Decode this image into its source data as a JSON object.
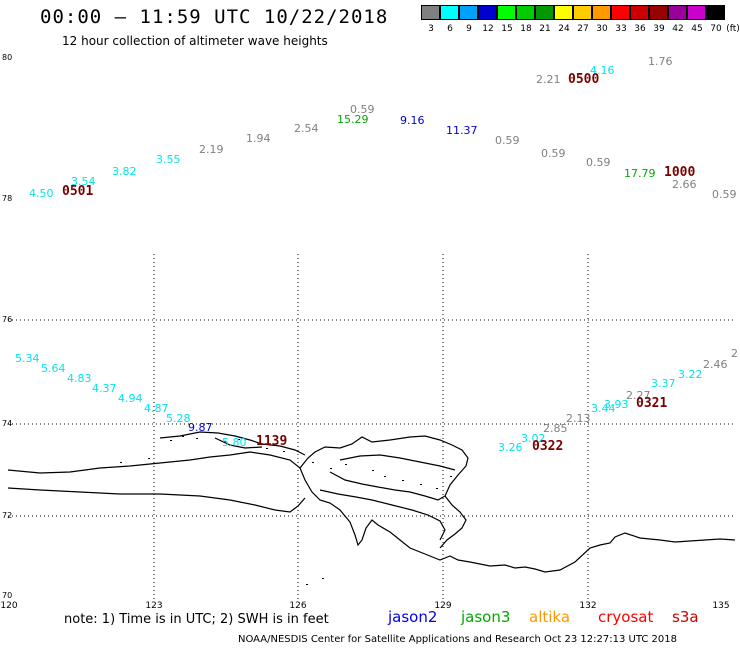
{
  "title": "00:00 – 11:59 UTC 10/22/2018",
  "subtitle": "12 hour collection of altimeter wave heights",
  "colorbar": {
    "unit": "(ft)",
    "steps": [
      {
        "label": "3",
        "color": "#808080"
      },
      {
        "label": "6",
        "color": "#00ffff"
      },
      {
        "label": "9",
        "color": "#00a0ff"
      },
      {
        "label": "12",
        "color": "#0000cc"
      },
      {
        "label": "15",
        "color": "#00ff00"
      },
      {
        "label": "18",
        "color": "#00cc00"
      },
      {
        "label": "21",
        "color": "#009900"
      },
      {
        "label": "24",
        "color": "#ffff00"
      },
      {
        "label": "27",
        "color": "#ffcc00"
      },
      {
        "label": "30",
        "color": "#ff9900"
      },
      {
        "label": "33",
        "color": "#ff0000"
      },
      {
        "label": "36",
        "color": "#cc0000"
      },
      {
        "label": "39",
        "color": "#990000"
      },
      {
        "label": "42",
        "color": "#990099"
      },
      {
        "label": "45",
        "color": "#cc00cc"
      },
      {
        "label": "70",
        "color": "#000000"
      }
    ]
  },
  "axes": {
    "lat_labels": [
      "80",
      "78",
      "76",
      "74",
      "72",
      "70"
    ],
    "lon_labels": [
      "120",
      "123",
      "126",
      "129",
      "132",
      "135"
    ]
  },
  "observations": [
    {
      "v": "4.50",
      "c": "#00e5ee"
    },
    {
      "v": "3.54",
      "c": "#00e5ee"
    },
    {
      "v": "3.82",
      "c": "#00e5ee"
    },
    {
      "v": "3.55",
      "c": "#00e5ee"
    },
    {
      "v": "2.19",
      "c": "#808080"
    },
    {
      "v": "1.94",
      "c": "#808080"
    },
    {
      "v": "2.54",
      "c": "#808080"
    },
    {
      "v": "0.59",
      "c": "#808080"
    },
    {
      "v": "15.29",
      "c": "#00aa00"
    },
    {
      "v": "9.16",
      "c": "#0000cc"
    },
    {
      "v": "11.37",
      "c": "#0000cc"
    },
    {
      "v": "0.59",
      "c": "#808080"
    },
    {
      "v": "0.59",
      "c": "#808080"
    },
    {
      "v": "2.21",
      "c": "#808080"
    },
    {
      "v": "4.16",
      "c": "#00e5ee"
    },
    {
      "v": "1.76",
      "c": "#808080"
    },
    {
      "v": "0.59",
      "c": "#808080"
    },
    {
      "v": "17.79",
      "c": "#00aa00"
    },
    {
      "v": "2.66",
      "c": "#808080"
    },
    {
      "v": "0.59",
      "c": "#808080"
    },
    {
      "v": "5.34",
      "c": "#00e5ee"
    },
    {
      "v": "5.64",
      "c": "#00e5ee"
    },
    {
      "v": "4.83",
      "c": "#00e5ee"
    },
    {
      "v": "4.37",
      "c": "#00e5ee"
    },
    {
      "v": "4.94",
      "c": "#00e5ee"
    },
    {
      "v": "4.87",
      "c": "#00e5ee"
    },
    {
      "v": "5.28",
      "c": "#00e5ee"
    },
    {
      "v": "9.87",
      "c": "#0000cc"
    },
    {
      "v": "5.80",
      "c": "#00e5ee"
    },
    {
      "v": "3.26",
      "c": "#00e5ee"
    },
    {
      "v": "3.02",
      "c": "#00e5ee"
    },
    {
      "v": "2.85",
      "c": "#808080"
    },
    {
      "v": "2.13",
      "c": "#808080"
    },
    {
      "v": "3.44",
      "c": "#00e5ee"
    },
    {
      "v": "3.93",
      "c": "#00e5ee"
    },
    {
      "v": "2.27",
      "c": "#808080"
    },
    {
      "v": "3.37",
      "c": "#00e5ee"
    },
    {
      "v": "3.22",
      "c": "#00e5ee"
    },
    {
      "v": "2.46",
      "c": "#808080"
    },
    {
      "v": "2",
      "c": "#808080"
    }
  ],
  "time_stamps": [
    {
      "t": "0501"
    },
    {
      "t": "0500"
    },
    {
      "t": "1000"
    },
    {
      "t": "1139"
    },
    {
      "t": "0322"
    },
    {
      "t": "0321"
    }
  ],
  "note": "note:  1) Time is in UTC;  2) SWH is in feet",
  "satellites": [
    {
      "name": "jason2",
      "color": "#0000ee"
    },
    {
      "name": "jason3",
      "color": "#00aa00"
    },
    {
      "name": "altika",
      "color": "#ff9900"
    },
    {
      "name": "cryosat",
      "color": "#ff0000"
    },
    {
      "name": "s3a",
      "color": "#cc0000"
    }
  ],
  "credit": "NOAA/NESDIS Center for Satellite Applications and Research     Oct 23 12:27:13 UTC 2018"
}
